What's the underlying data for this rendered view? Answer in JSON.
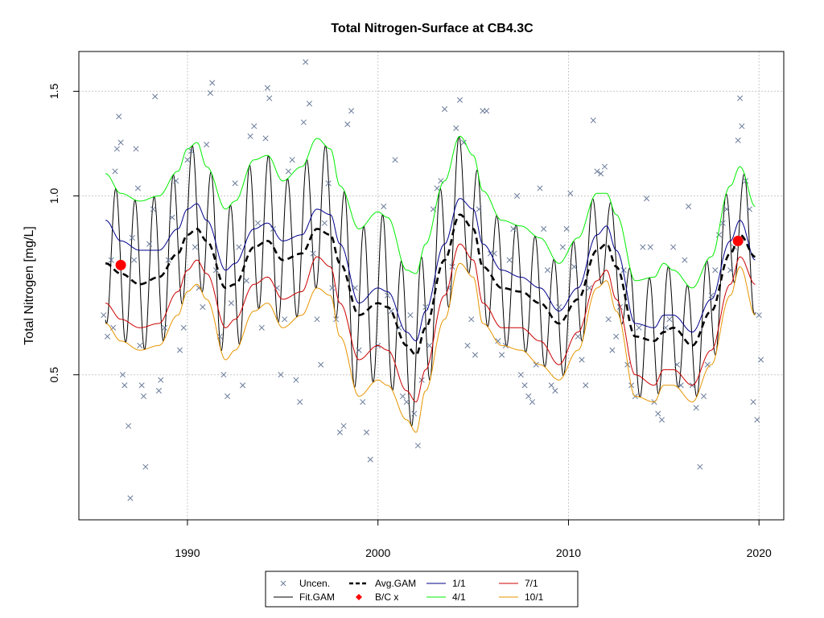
{
  "chart_data": {
    "type": "line",
    "title": "Total Nitrogen-Surface at CB4.3C",
    "xlabel": "",
    "ylabel": "Total Nitrogen [mg/L]",
    "x_range": [
      1984.3,
      2021.3
    ],
    "y_range": [
      0.285,
      1.75
    ],
    "y_scale": "log",
    "x_ticks": [
      1990,
      2000,
      2010,
      2020
    ],
    "y_ticks": [
      0.5,
      1.0,
      1.5
    ],
    "y_tick_labels": [
      "0.5",
      "1.0",
      "1.5"
    ],
    "grid": true,
    "legend_position": "bottom-center",
    "legend": [
      {
        "label": "Uncen.",
        "color": "#6a7b9a",
        "kind": "cross"
      },
      {
        "label": "Fit.GAM",
        "color": "#000000",
        "kind": "line"
      },
      {
        "label": "Avg.GAM",
        "color": "#000000",
        "kind": "dash"
      },
      {
        "label": "B/C x",
        "color": "#ff0000",
        "kind": "diamond"
      },
      {
        "label": "1/1",
        "color": "#00008b",
        "kind": "line"
      },
      {
        "label": "4/1",
        "color": "#00ee00",
        "kind": "line"
      },
      {
        "label": "7/1",
        "color": "#cc0000",
        "kind": "line"
      },
      {
        "label": "10/1",
        "color": "#e69500",
        "kind": "line"
      }
    ],
    "bc_points": [
      {
        "x": 1986.5,
        "y": 0.765
      },
      {
        "x": 2018.9,
        "y": 0.84
      }
    ],
    "series": [
      {
        "name": "Avg.GAM",
        "x": [
          1985.7,
          1986.5,
          1987.5,
          1988.5,
          1989.5,
          1990.0,
          1990.5,
          1991.0,
          1992.0,
          1992.5,
          1993.5,
          1994.2,
          1995.0,
          1996.0,
          1996.8,
          1997.5,
          1998.0,
          1999.0,
          2000.0,
          2000.5,
          2001.5,
          2002.0,
          2002.5,
          2003.5,
          2004.3,
          2005.0,
          2005.5,
          2006.5,
          2007.5,
          2008.5,
          2009.5,
          2010.5,
          2011.5,
          2012.0,
          2012.5,
          2013.5,
          2014.5,
          2015.0,
          2015.5,
          2016.5,
          2017.5,
          2018.5,
          2019.0,
          2019.8
        ],
        "y": [
          0.77,
          0.74,
          0.71,
          0.73,
          0.8,
          0.86,
          0.88,
          0.84,
          0.7,
          0.71,
          0.82,
          0.84,
          0.78,
          0.8,
          0.88,
          0.86,
          0.77,
          0.63,
          0.66,
          0.65,
          0.56,
          0.54,
          0.6,
          0.78,
          0.93,
          0.88,
          0.76,
          0.7,
          0.69,
          0.66,
          0.61,
          0.67,
          0.81,
          0.83,
          0.76,
          0.58,
          0.57,
          0.59,
          0.6,
          0.56,
          0.64,
          0.8,
          0.86,
          0.79
        ]
      },
      {
        "name": "1/1",
        "x": [
          1985.7,
          1986.5,
          1987.5,
          1988.5,
          1989.5,
          1990.0,
          1990.5,
          1991.0,
          1992.0,
          1992.5,
          1993.5,
          1994.2,
          1995.0,
          1996.0,
          1996.8,
          1997.5,
          1998.0,
          1999.0,
          2000.0,
          2000.5,
          2001.5,
          2002.0,
          2002.5,
          2003.5,
          2004.3,
          2005.0,
          2005.5,
          2006.5,
          2007.5,
          2008.5,
          2009.5,
          2010.5,
          2011.5,
          2012.0,
          2012.5,
          2013.5,
          2014.5,
          2015.0,
          2015.5,
          2016.5,
          2017.5,
          2018.5,
          2019.0,
          2019.8
        ],
        "y": [
          0.91,
          0.84,
          0.81,
          0.81,
          0.88,
          0.95,
          0.97,
          0.91,
          0.75,
          0.77,
          0.88,
          0.9,
          0.84,
          0.86,
          0.95,
          0.93,
          0.83,
          0.66,
          0.7,
          0.69,
          0.59,
          0.57,
          0.64,
          0.83,
          0.99,
          0.95,
          0.83,
          0.75,
          0.73,
          0.7,
          0.64,
          0.7,
          0.86,
          0.89,
          0.81,
          0.61,
          0.6,
          0.63,
          0.63,
          0.59,
          0.67,
          0.84,
          0.91,
          0.78
        ]
      },
      {
        "name": "4/1",
        "x": [
          1985.7,
          1986.5,
          1987.5,
          1988.5,
          1989.5,
          1990.0,
          1990.5,
          1991.0,
          1992.0,
          1992.5,
          1993.5,
          1994.2,
          1995.0,
          1996.0,
          1996.8,
          1997.5,
          1998.0,
          1999.0,
          2000.0,
          2000.5,
          2001.5,
          2002.0,
          2002.5,
          2003.5,
          2004.3,
          2005.0,
          2005.5,
          2006.5,
          2007.5,
          2008.5,
          2009.5,
          2010.5,
          2011.5,
          2012.0,
          2012.5,
          2013.5,
          2014.5,
          2015.0,
          2015.5,
          2016.5,
          2017.5,
          2018.5,
          2019.0,
          2019.8
        ],
        "y": [
          1.09,
          1.01,
          0.98,
          1.0,
          1.1,
          1.2,
          1.23,
          1.12,
          0.95,
          0.98,
          1.15,
          1.17,
          1.06,
          1.12,
          1.25,
          1.2,
          1.04,
          0.88,
          0.94,
          0.92,
          0.75,
          0.74,
          0.83,
          1.06,
          1.26,
          1.17,
          1.02,
          0.91,
          0.89,
          0.85,
          0.77,
          0.85,
          1.01,
          1.01,
          0.93,
          0.72,
          0.73,
          0.77,
          0.75,
          0.7,
          0.79,
          1.04,
          1.12,
          0.96
        ]
      },
      {
        "name": "7/1",
        "x": [
          1985.7,
          1986.5,
          1987.5,
          1988.5,
          1989.5,
          1990.0,
          1990.5,
          1991.0,
          1992.0,
          1992.5,
          1993.5,
          1994.2,
          1995.0,
          1996.0,
          1996.8,
          1997.5,
          1998.0,
          1999.0,
          2000.0,
          2000.5,
          2001.5,
          2002.0,
          2002.5,
          2003.5,
          2004.3,
          2005.0,
          2005.5,
          2006.5,
          2007.5,
          2008.5,
          2009.5,
          2010.5,
          2011.5,
          2012.0,
          2012.5,
          2013.5,
          2014.5,
          2015.0,
          2015.5,
          2016.5,
          2017.5,
          2018.5,
          2019.0,
          2019.8
        ],
        "y": [
          0.66,
          0.62,
          0.6,
          0.61,
          0.69,
          0.75,
          0.78,
          0.74,
          0.6,
          0.62,
          0.71,
          0.73,
          0.67,
          0.69,
          0.79,
          0.76,
          0.66,
          0.53,
          0.56,
          0.55,
          0.47,
          0.45,
          0.51,
          0.68,
          0.83,
          0.78,
          0.66,
          0.6,
          0.6,
          0.57,
          0.52,
          0.59,
          0.72,
          0.75,
          0.67,
          0.5,
          0.48,
          0.51,
          0.51,
          0.48,
          0.55,
          0.71,
          0.79,
          0.71
        ]
      },
      {
        "name": "10/1",
        "x": [
          1985.7,
          1986.5,
          1987.5,
          1988.5,
          1989.5,
          1990.0,
          1990.5,
          1991.0,
          1992.0,
          1992.5,
          1993.5,
          1994.2,
          1995.0,
          1996.0,
          1996.8,
          1997.5,
          1998.0,
          1999.0,
          2000.0,
          2000.5,
          2001.5,
          2002.0,
          2002.5,
          2003.5,
          2004.3,
          2005.0,
          2005.5,
          2006.5,
          2007.5,
          2008.5,
          2009.5,
          2010.5,
          2011.5,
          2012.0,
          2012.5,
          2013.5,
          2014.5,
          2015.0,
          2015.5,
          2016.5,
          2017.5,
          2018.5,
          2019.0,
          2019.8
        ],
        "y": [
          0.61,
          0.57,
          0.55,
          0.56,
          0.63,
          0.69,
          0.71,
          0.67,
          0.53,
          0.55,
          0.64,
          0.66,
          0.6,
          0.63,
          0.7,
          0.68,
          0.58,
          0.46,
          0.49,
          0.48,
          0.42,
          0.4,
          0.47,
          0.62,
          0.77,
          0.73,
          0.61,
          0.56,
          0.55,
          0.52,
          0.49,
          0.55,
          0.7,
          0.72,
          0.64,
          0.46,
          0.45,
          0.48,
          0.48,
          0.45,
          0.52,
          0.68,
          0.76,
          0.63
        ]
      }
    ],
    "uncensored_points": [
      [
        1985.6,
        0.63
      ],
      [
        1985.8,
        0.58
      ],
      [
        1986.0,
        0.78
      ],
      [
        1986.1,
        0.6
      ],
      [
        1986.2,
        1.1
      ],
      [
        1986.3,
        1.2
      ],
      [
        1986.4,
        1.36
      ],
      [
        1986.5,
        1.23
      ],
      [
        1986.6,
        0.5
      ],
      [
        1986.7,
        0.48
      ],
      [
        1986.9,
        0.41
      ],
      [
        1987.0,
        0.31
      ],
      [
        1987.1,
        0.85
      ],
      [
        1987.2,
        0.78
      ],
      [
        1987.3,
        1.2
      ],
      [
        1987.4,
        1.03
      ],
      [
        1987.5,
        0.56
      ],
      [
        1987.6,
        0.48
      ],
      [
        1987.7,
        0.46
      ],
      [
        1987.8,
        0.35
      ],
      [
        1988.0,
        0.83
      ],
      [
        1988.2,
        0.95
      ],
      [
        1988.3,
        1.47
      ],
      [
        1988.5,
        0.47
      ],
      [
        1988.6,
        0.49
      ],
      [
        1988.8,
        0.6
      ],
      [
        1989.0,
        0.78
      ],
      [
        1989.2,
        0.92
      ],
      [
        1989.4,
        1.06
      ],
      [
        1989.6,
        0.55
      ],
      [
        1989.8,
        0.6
      ],
      [
        1990.0,
        1.15
      ],
      [
        1990.2,
        1.19
      ],
      [
        1990.4,
        0.82
      ],
      [
        1990.6,
        0.7
      ],
      [
        1990.8,
        0.65
      ],
      [
        1991.0,
        1.22
      ],
      [
        1991.2,
        1.49
      ],
      [
        1991.3,
        1.55
      ],
      [
        1991.5,
        0.75
      ],
      [
        1991.7,
        0.58
      ],
      [
        1991.9,
        0.5
      ],
      [
        1992.1,
        0.46
      ],
      [
        1992.3,
        0.66
      ],
      [
        1992.5,
        1.05
      ],
      [
        1992.7,
        0.82
      ],
      [
        1992.9,
        0.48
      ],
      [
        1993.1,
        0.72
      ],
      [
        1993.3,
        1.26
      ],
      [
        1993.5,
        1.31
      ],
      [
        1993.7,
        0.9
      ],
      [
        1993.9,
        0.6
      ],
      [
        1994.1,
        1.25
      ],
      [
        1994.2,
        1.52
      ],
      [
        1994.3,
        1.46
      ],
      [
        1994.5,
        0.88
      ],
      [
        1994.7,
        0.7
      ],
      [
        1994.9,
        0.5
      ],
      [
        1995.1,
        0.62
      ],
      [
        1995.3,
        1.1
      ],
      [
        1995.5,
        1.15
      ],
      [
        1995.7,
        0.49
      ],
      [
        1995.9,
        0.45
      ],
      [
        1996.1,
        1.33
      ],
      [
        1996.2,
        1.68
      ],
      [
        1996.4,
        1.43
      ],
      [
        1996.6,
        0.8
      ],
      [
        1996.8,
        0.62
      ],
      [
        1997.0,
        0.52
      ],
      [
        1997.2,
        0.9
      ],
      [
        1997.4,
        1.05
      ],
      [
        1997.6,
        0.7
      ],
      [
        1997.8,
        0.62
      ],
      [
        1998.0,
        0.4
      ],
      [
        1998.2,
        0.41
      ],
      [
        1998.4,
        1.32
      ],
      [
        1998.6,
        1.39
      ],
      [
        1998.8,
        0.7
      ],
      [
        1999.0,
        0.55
      ],
      [
        1999.2,
        0.45
      ],
      [
        1999.4,
        0.4
      ],
      [
        1999.6,
        0.36
      ],
      [
        2000.0,
        0.56
      ],
      [
        2000.3,
        0.96
      ],
      [
        2000.5,
        0.68
      ],
      [
        2000.7,
        0.64
      ],
      [
        2000.9,
        1.15
      ],
      [
        2001.1,
        0.6
      ],
      [
        2001.3,
        0.46
      ],
      [
        2001.5,
        0.45
      ],
      [
        2001.7,
        0.63
      ],
      [
        2001.9,
        0.43
      ],
      [
        2002.1,
        0.38
      ],
      [
        2002.3,
        0.49
      ],
      [
        2002.5,
        0.65
      ],
      [
        2002.7,
        0.56
      ],
      [
        2002.9,
        0.95
      ],
      [
        2003.1,
        1.03
      ],
      [
        2003.3,
        1.06
      ],
      [
        2003.5,
        1.4
      ],
      [
        2003.7,
        0.7
      ],
      [
        2003.9,
        0.76
      ],
      [
        2004.1,
        1.3
      ],
      [
        2004.3,
        1.45
      ],
      [
        2004.5,
        1.23
      ],
      [
        2004.7,
        0.56
      ],
      [
        2004.9,
        0.62
      ],
      [
        2005.1,
        0.54
      ],
      [
        2005.3,
        0.95
      ],
      [
        2005.5,
        1.39
      ],
      [
        2005.7,
        1.39
      ],
      [
        2005.9,
        0.8
      ],
      [
        2006.1,
        0.8
      ],
      [
        2006.3,
        0.57
      ],
      [
        2006.5,
        0.54
      ],
      [
        2006.7,
        0.56
      ],
      [
        2006.9,
        0.78
      ],
      [
        2007.1,
        0.88
      ],
      [
        2007.3,
        1.0
      ],
      [
        2007.5,
        0.5
      ],
      [
        2007.7,
        0.48
      ],
      [
        2007.9,
        0.46
      ],
      [
        2008.1,
        0.45
      ],
      [
        2008.3,
        0.52
      ],
      [
        2008.5,
        1.03
      ],
      [
        2008.7,
        0.88
      ],
      [
        2008.9,
        0.75
      ],
      [
        2009.1,
        0.48
      ],
      [
        2009.3,
        0.47
      ],
      [
        2009.5,
        0.65
      ],
      [
        2009.7,
        0.82
      ],
      [
        2009.9,
        0.88
      ],
      [
        2010.1,
        1.01
      ],
      [
        2010.3,
        0.76
      ],
      [
        2010.5,
        0.58
      ],
      [
        2010.7,
        0.53
      ],
      [
        2010.9,
        0.48
      ],
      [
        2011.1,
        0.7
      ],
      [
        2011.3,
        1.34
      ],
      [
        2011.5,
        1.1
      ],
      [
        2011.7,
        1.09
      ],
      [
        2011.9,
        1.12
      ],
      [
        2012.1,
        0.62
      ],
      [
        2012.3,
        0.55
      ],
      [
        2012.5,
        0.58
      ],
      [
        2012.7,
        0.65
      ],
      [
        2012.9,
        0.75
      ],
      [
        2013.1,
        0.52
      ],
      [
        2013.3,
        0.48
      ],
      [
        2013.5,
        0.46
      ],
      [
        2013.7,
        0.6
      ],
      [
        2013.9,
        0.82
      ],
      [
        2014.1,
        0.99
      ],
      [
        2014.3,
        0.82
      ],
      [
        2014.5,
        0.45
      ],
      [
        2014.7,
        0.43
      ],
      [
        2014.9,
        0.42
      ],
      [
        2015.1,
        0.6
      ],
      [
        2015.3,
        0.62
      ],
      [
        2015.5,
        0.82
      ],
      [
        2015.7,
        0.52
      ],
      [
        2015.9,
        0.48
      ],
      [
        2016.1,
        0.78
      ],
      [
        2016.3,
        0.96
      ],
      [
        2016.5,
        0.48
      ],
      [
        2016.7,
        0.44
      ],
      [
        2016.9,
        0.35
      ],
      [
        2017.1,
        0.46
      ],
      [
        2017.3,
        0.52
      ],
      [
        2017.5,
        0.68
      ],
      [
        2017.7,
        0.75
      ],
      [
        2017.9,
        0.86
      ],
      [
        2018.1,
        0.9
      ],
      [
        2018.3,
        0.95
      ],
      [
        2018.5,
        0.75
      ],
      [
        2018.7,
        0.82
      ],
      [
        2018.9,
        1.24
      ],
      [
        2019.0,
        1.46
      ],
      [
        2019.1,
        1.31
      ],
      [
        2019.3,
        1.06
      ],
      [
        2019.5,
        0.95
      ],
      [
        2019.7,
        0.45
      ],
      [
        2019.9,
        0.42
      ],
      [
        2020.0,
        0.63
      ],
      [
        2020.1,
        0.53
      ]
    ]
  }
}
